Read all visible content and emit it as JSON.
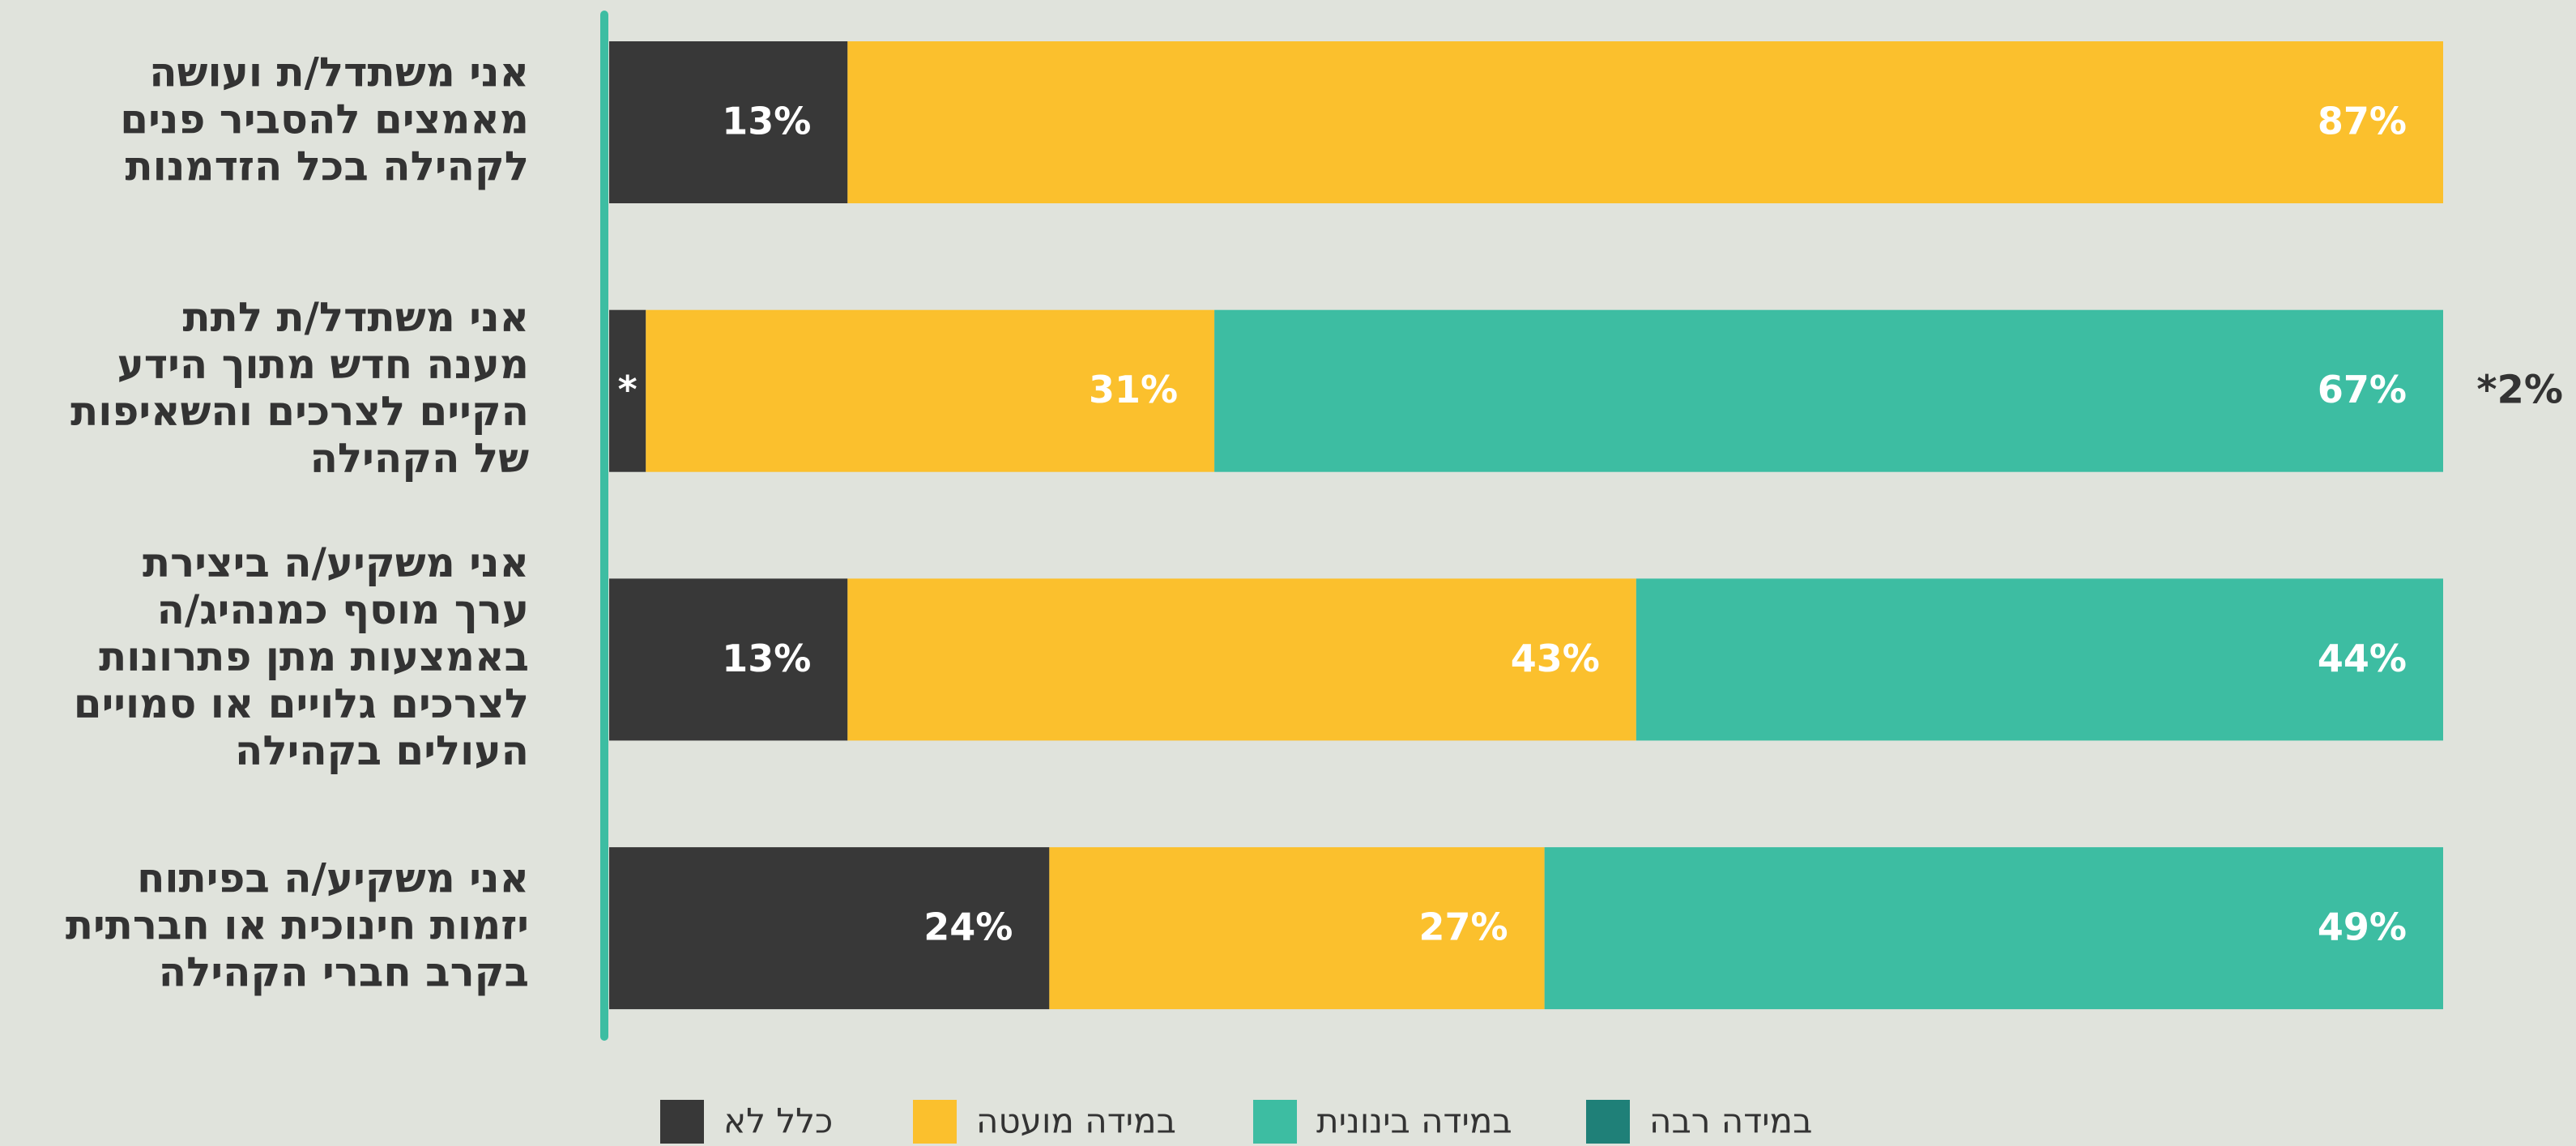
{
  "chart_data": {
    "type": "stacked-bar-horizontal",
    "categories": [
      [
        "אני משתדל/ת ועושה",
        "מאמצים להסביר פנים",
        "לקהילה בכל הזדמנות"
      ],
      [
        "אני משתדל/ת לתת",
        "מענה חדש מתוך הידע",
        "הקיים לצרכים והשאיפות",
        "של הקהילה"
      ],
      [
        "אני משקיע/ה ביצירת",
        "ערך מוסף כמנהיג/ה",
        "באמצעות מתן פתרונות",
        "לצרכים גלויים או סמויים",
        "העולים בקהילה"
      ],
      [
        "אני משקיע/ה בפיתוח",
        "יזמות חינוכית או חברתית",
        "בקרב חברי הקהילה"
      ]
    ],
    "series": [
      {
        "name": "כלל לא",
        "color": "#383838",
        "values": [
          13,
          2,
          13,
          24
        ],
        "value_labels": [
          "13%",
          "*",
          "13%",
          "24%"
        ]
      },
      {
        "name": "במידה מועטה",
        "color": "#fbc02d",
        "values": [
          87,
          31,
          43,
          27
        ],
        "value_labels": [
          "87%",
          "31%",
          "43%",
          "27%"
        ]
      },
      {
        "name": "במידה בינונית",
        "color": "#3dbda2",
        "values": [
          0,
          67,
          44,
          49
        ],
        "value_labels": [
          null,
          "67%",
          "44%",
          "49%"
        ]
      },
      {
        "name": "במידה רבה",
        "color": "#1f8078",
        "values": [
          0,
          0,
          0,
          0
        ],
        "value_labels": [
          null,
          null,
          null,
          null
        ]
      }
    ],
    "annotations": [
      {
        "text": "*2%",
        "row": 1
      }
    ],
    "xlim": [
      0,
      100
    ]
  }
}
